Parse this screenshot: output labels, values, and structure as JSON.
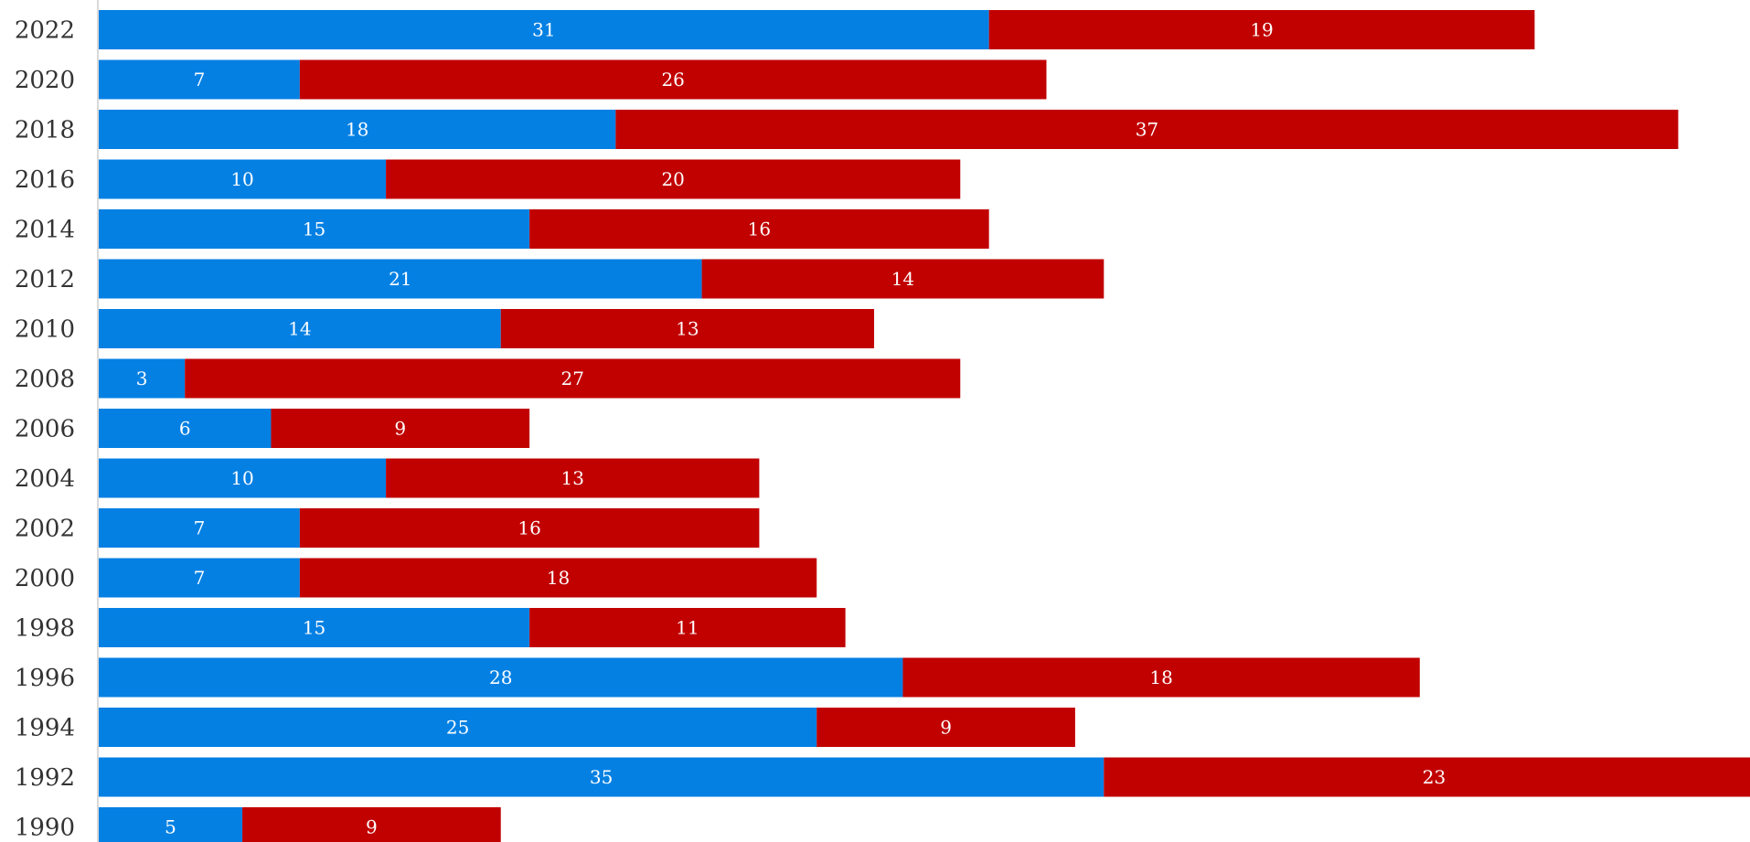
{
  "chart_data": {
    "type": "bar",
    "orientation": "horizontal",
    "stacked": true,
    "categories": [
      "2022",
      "2020",
      "2018",
      "2016",
      "2014",
      "2012",
      "2010",
      "2008",
      "2006",
      "2004",
      "2002",
      "2000",
      "1998",
      "1996",
      "1994",
      "1992",
      "1990"
    ],
    "series": [
      {
        "color": "#0480e3",
        "values": [
          31,
          7,
          18,
          10,
          15,
          21,
          14,
          3,
          6,
          10,
          7,
          7,
          15,
          28,
          25,
          35,
          5
        ]
      },
      {
        "color": "#c10000",
        "values": [
          19,
          26,
          37,
          20,
          16,
          14,
          13,
          27,
          9,
          13,
          16,
          18,
          11,
          18,
          9,
          23,
          9
        ]
      }
    ],
    "xlim": [
      0,
      57.5
    ],
    "grid": false,
    "legend": "none",
    "title": "",
    "xlabel": "",
    "ylabel": ""
  }
}
